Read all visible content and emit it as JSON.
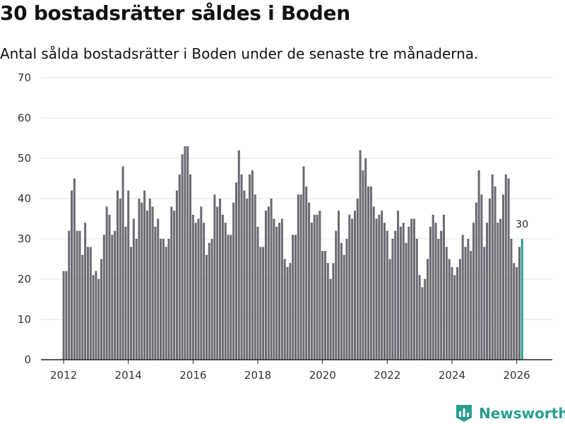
{
  "header": {
    "title": "30 bostadsrätter såldes i Boden",
    "subtitle": "Antal sålda bostadsrätter i Boden under de senaste tre månaderna."
  },
  "brand": {
    "name": "Newsworthy"
  },
  "colors": {
    "bar": "#6b6b73",
    "highlight": "#2a9d8f",
    "grid": "#e3e3e3",
    "axis": "#222222"
  },
  "chart_data": {
    "type": "bar",
    "title": "30 bostadsrätter såldes i Boden",
    "subtitle": "Antal sålda bostadsrätter i Boden under de senaste tre månaderna.",
    "xlabel": "",
    "ylabel": "",
    "ylim": [
      0,
      70
    ],
    "yticks": [
      0,
      10,
      20,
      30,
      40,
      50,
      60,
      70
    ],
    "xlim": [
      2011.3,
      2027.1
    ],
    "xticks": [
      2012,
      2014,
      2016,
      2018,
      2020,
      2022,
      2024,
      2026
    ],
    "x_start": 2012.0,
    "x_step": 0.08333,
    "grid": true,
    "values": [
      22,
      22,
      32,
      42,
      45,
      32,
      32,
      26,
      34,
      28,
      28,
      21,
      22,
      20,
      25,
      31,
      38,
      36,
      31,
      32,
      42,
      40,
      48,
      33,
      42,
      28,
      35,
      30,
      40,
      39,
      42,
      37,
      40,
      38,
      33,
      35,
      30,
      30,
      28,
      30,
      38,
      37,
      42,
      46,
      51,
      53,
      53,
      46,
      36,
      34,
      35,
      38,
      34,
      26,
      29,
      30,
      41,
      38,
      40,
      36,
      34,
      31,
      31,
      39,
      44,
      52,
      46,
      42,
      40,
      46,
      47,
      41,
      33,
      28,
      28,
      37,
      38,
      40,
      35,
      33,
      34,
      35,
      25,
      23,
      24,
      31,
      31,
      41,
      41,
      48,
      43,
      39,
      34,
      36,
      36,
      37,
      27,
      27,
      24,
      20,
      24,
      32,
      37,
      29,
      26,
      30,
      36,
      35,
      37,
      40,
      52,
      47,
      50,
      43,
      43,
      38,
      35,
      36,
      37,
      34,
      32,
      25,
      30,
      32,
      37,
      33,
      34,
      29,
      33,
      35,
      35,
      30,
      21,
      18,
      20,
      25,
      33,
      36,
      34,
      30,
      32,
      36,
      28,
      25,
      23,
      21,
      23,
      25,
      31,
      28,
      30,
      27,
      34,
      39,
      47,
      41,
      28,
      34,
      40,
      46,
      43,
      34,
      35,
      41,
      46,
      45,
      30,
      24,
      23,
      28,
      30
    ],
    "highlight_last": true,
    "annotations": [
      {
        "label": "30",
        "target": "last"
      }
    ]
  }
}
